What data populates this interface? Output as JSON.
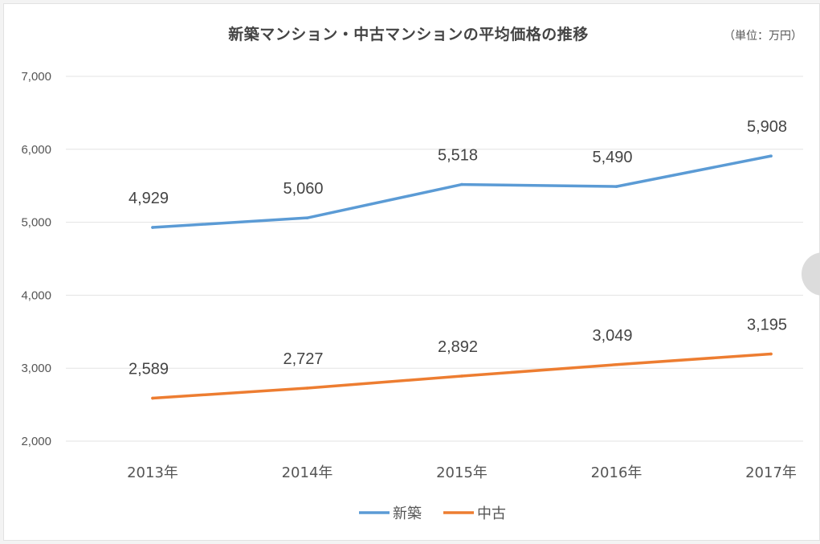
{
  "chart_data": {
    "type": "line",
    "title": "新築マンション・中古マンションの平均価格の推移",
    "unit_note": "（単位：万円）",
    "categories": [
      "2013年",
      "2014年",
      "2015年",
      "2016年",
      "2017年"
    ],
    "series": [
      {
        "name": "新築",
        "color": "#5b9bd5",
        "values": [
          4929,
          5060,
          5518,
          5490,
          5908
        ],
        "labels": [
          "4,929",
          "5,060",
          "5,518",
          "5,490",
          "5,908"
        ]
      },
      {
        "name": "中古",
        "color": "#ed7d31",
        "values": [
          2589,
          2727,
          2892,
          3049,
          3195
        ],
        "labels": [
          "2,589",
          "2,727",
          "2,892",
          "3,049",
          "3,195"
        ]
      }
    ],
    "ylim": [
      2000,
      7000
    ],
    "yticks": [
      2000,
      3000,
      4000,
      5000,
      6000,
      7000
    ],
    "ytick_labels": [
      "2,000",
      "3,000",
      "4,000",
      "5,000",
      "6,000",
      "7,000"
    ],
    "grid": true,
    "legend": "bottom-center"
  }
}
